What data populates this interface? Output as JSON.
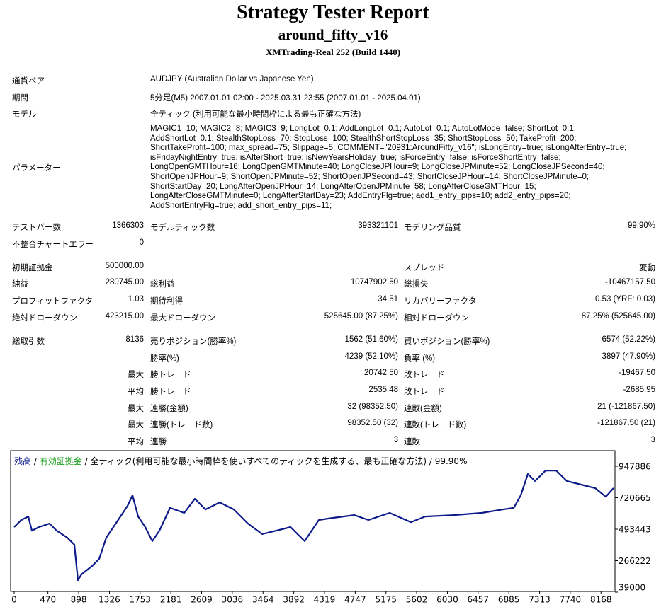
{
  "header": {
    "title": "Strategy Tester Report",
    "subtitle": "around_fifty_v16",
    "build": "XMTrading-Real 252 (Build 1440)"
  },
  "info": [
    {
      "label": "通貨ペア",
      "value": "AUDJPY (Australian Dollar vs Japanese Yen)"
    },
    {
      "label": "期間",
      "value": "5分足(M5) 2007.01.01 02:00 - 2025.03.31 23:55 (2007.01.01 - 2025.04.01)"
    },
    {
      "label": "モデル",
      "value": "全ティック (利用可能な最小時間枠による最も正確な方法)"
    }
  ],
  "parameters": {
    "label": "パラメーター",
    "lines": [
      "MAGIC1=10; MAGIC2=8; MAGIC3=9; LongLot=0.1; AddLongLot=0.1; AutoLot=0.1; AutoLotMode=false; ShortLot=0.1;",
      "AddShortLot=0.1; StealthStopLoss=70; StopLoss=100; StealthShortStopLoss=35; ShortStopLoss=50; TakeProfit=200;",
      "ShortTakeProfit=100; max_spread=75; Slippage=5; COMMENT=\"20931:AroundFifty_v16\"; isLongEntry=true; isLongAfterEntry=true;",
      "isFridayNightEntry=true; isAfterShort=true; isNewYearsHoliday=true; isForceEntry=false; isForceShortEntry=false;",
      "LongOpenGMTHour=16; LongOpenGMTMinute=40; LongCloseJPHour=9; LongCloseJPMinute=52; LongCloseJPSecond=40;",
      "ShortOpenJPHour=9; ShortOpenJPMinute=52; ShortOpenJPSecond=43; ShortCloseJPHour=14; ShortCloseJPMinute=0;",
      "ShortStartDay=20; LongAfterOpenJPHour=14; LongAfterOpenJPMinute=58; LongAfterCloseGMTHour=15;",
      "LongAfterCloseGMTMinute=0; LongAfterStartDay=23; AddEntryFlg=true; add1_entry_pips=10; add2_entry_pips=20;",
      "AddShortEntryFlg=true; add_short_entry_pips=11;"
    ]
  },
  "stats": [
    {
      "c1": "テストバー数",
      "v1": "1366303",
      "c2": "モデルティック数",
      "v2": "393321101",
      "c3": "モデリング品質",
      "v3": "99.90%"
    },
    {
      "c1": "不整合チャートエラー",
      "v1": "0"
    },
    {
      "c1": "初期証拠金",
      "v1": "500000.00",
      "c3": "スプレッド",
      "v3": "変動"
    },
    {
      "c1": "純益",
      "v1": "280745.00",
      "c2": "総利益",
      "v2": "10747902.50",
      "c3": "総損失",
      "v3": "-10467157.50"
    },
    {
      "c1": "プロフィットファクタ",
      "v1": "1.03",
      "c2": "期待利得",
      "v2": "34.51",
      "c3": "リカバリーファクタ",
      "v3": "0.53 (YRF: 0.03)"
    },
    {
      "c1": "絶対ドローダウン",
      "v1": "423215.00",
      "c2": "最大ドローダウン",
      "v2": "525645.00 (87.25%)",
      "c3": "相対ドローダウン",
      "v3": "87.25% (525645.00)"
    },
    {
      "c1": "総取引数",
      "v1": "8136",
      "c2": "売りポジション(勝率%)",
      "v2": "1562 (51.60%)",
      "c3": "買いポジション(勝率%)",
      "v3": "6574 (52.22%)"
    },
    {
      "c2": "勝率(%)",
      "v2": "4239 (52.10%)",
      "c3": "負率 (%)",
      "v3": "3897 (47.90%)"
    },
    {
      "v1": "最大",
      "c2": "勝トレード",
      "v2": "20742.50",
      "c3": "敗トレード",
      "v3": "-19467.50"
    },
    {
      "v1": "平均",
      "c2": "勝トレード",
      "v2": "2535.48",
      "c3": "敗トレード",
      "v3": "-2685.95"
    },
    {
      "v1": "最大",
      "c2": "連勝(金額)",
      "v2": "32 (98352.50)",
      "c3": "連敗(金額)",
      "v3": "21 (-121867.50)"
    },
    {
      "v1": "最大",
      "c2": "連勝(トレード数)",
      "v2": "98352.50 (32)",
      "c3": "連敗(トレード数)",
      "v3": "-121867.50 (21)"
    },
    {
      "v1": "平均",
      "c2": "連勝",
      "v2": "3",
      "c3": "連敗",
      "v3": "3"
    }
  ],
  "chart_data": {
    "type": "line",
    "separator": "/",
    "subtitle": "全ティック(利用可能な最小時間枠を使いすべてのティックを生成する、最も正確な方法) / 99.90%",
    "legend_extra": {
      "name": "有効証拠金",
      "color": "#1e9e1e"
    },
    "x": [
      0,
      99,
      197,
      247,
      345,
      493,
      592,
      740,
      838,
      888,
      937,
      1085,
      1183,
      1282,
      1381,
      1479,
      1578,
      1647,
      1726,
      1824,
      1923,
      2022,
      2170,
      2367,
      2515,
      2663,
      2860,
      3057,
      3254,
      3452,
      3649,
      3846,
      4043,
      4241,
      4438,
      4734,
      4931,
      5227,
      5523,
      5720,
      6114,
      6509,
      6805,
      6953,
      7051,
      7150,
      7249,
      7396,
      7544,
      7692,
      7890,
      8087,
      8235,
      8343
    ],
    "series": [
      {
        "name": "残高",
        "color": "#0c1a8a",
        "values": [
          509000,
          560000,
          585000,
          483000,
          509000,
          534000,
          483000,
          432000,
          381000,
          126000,
          167000,
          228000,
          279000,
          432000,
          509000,
          585000,
          662000,
          738000,
          585000,
          509000,
          407000,
          483000,
          647000,
          611000,
          713000,
          636000,
          687000,
          636000,
          534000,
          458000,
          483000,
          509000,
          407000,
          560000,
          575000,
          595000,
          560000,
          611000,
          544000,
          585000,
          595000,
          611000,
          636000,
          647000,
          738000,
          892000,
          841000,
          917000,
          917000,
          841000,
          815000,
          790000,
          728000,
          790000
        ]
      }
    ],
    "xlim": [
      0,
      8343
    ],
    "ylim": [
      39000,
      1045000
    ],
    "xticks": [
      0,
      470,
      898,
      1326,
      1753,
      2181,
      2609,
      3036,
      3464,
      3892,
      4319,
      4747,
      5175,
      5602,
      6030,
      6457,
      6885,
      7313,
      7740,
      8168
    ],
    "yticks": [
      39000,
      266222,
      493443,
      720665,
      947886
    ]
  }
}
